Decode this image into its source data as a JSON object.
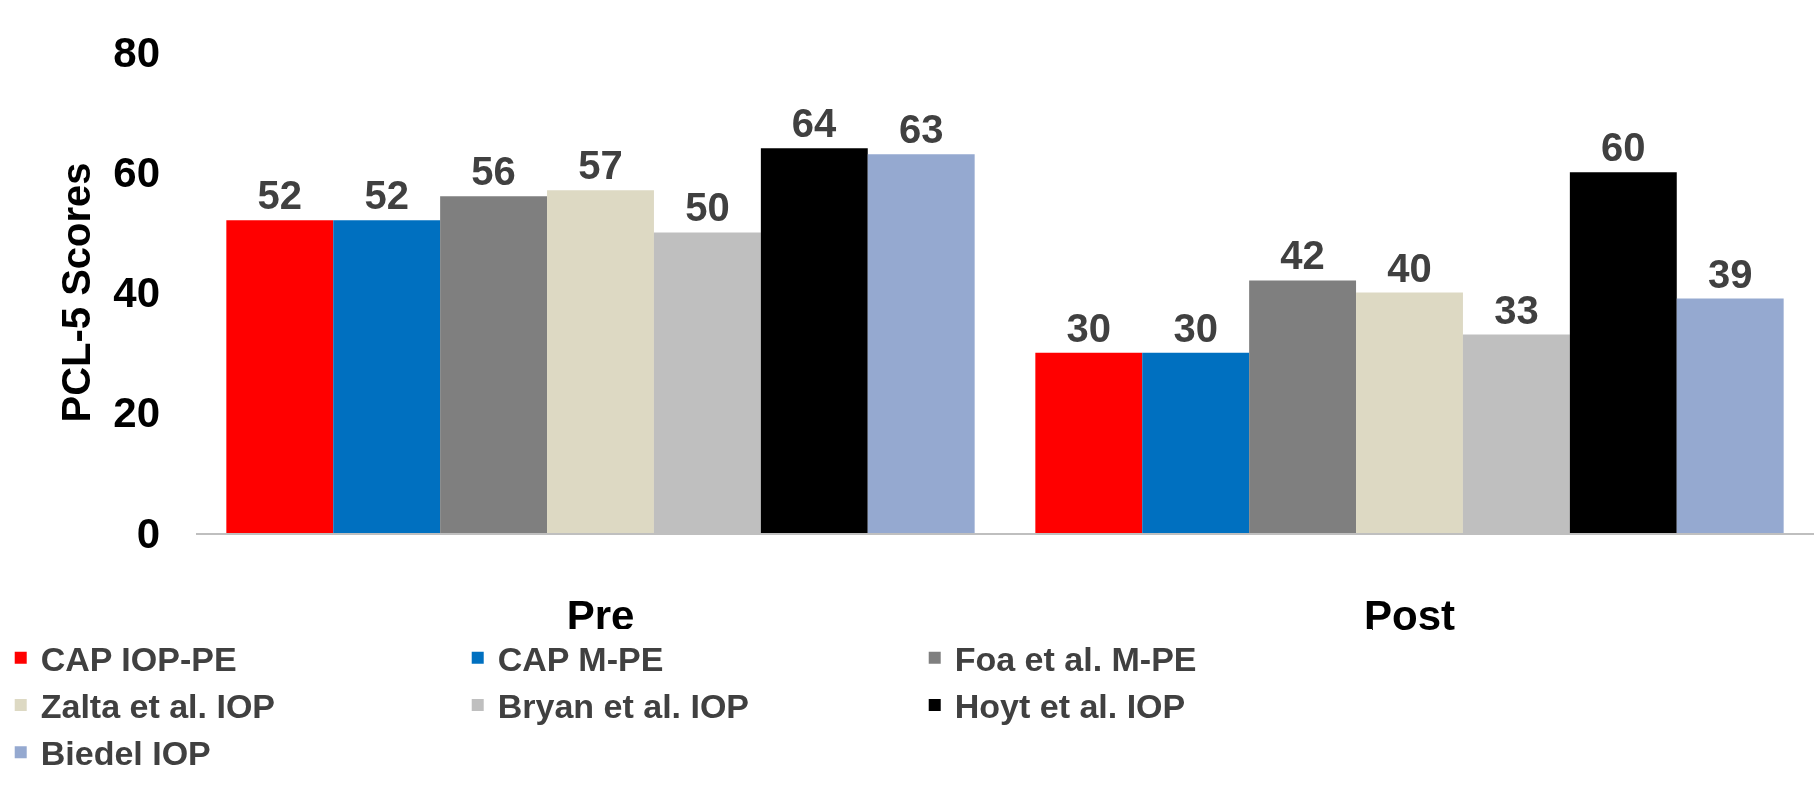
{
  "chart_data": {
    "type": "bar",
    "ylabel": "PCL-5 Scores",
    "categories": [
      "Pre",
      "Post"
    ],
    "series": [
      {
        "name": "CAP IOP-PE",
        "color": "#ff0000",
        "values": [
          52,
          30
        ]
      },
      {
        "name": "CAP M-PE",
        "color": "#0070c0",
        "values": [
          52,
          30
        ]
      },
      {
        "name": "Foa et al. M-PE",
        "color": "#7f7f7f",
        "values": [
          56,
          42
        ]
      },
      {
        "name": "Zalta et al. IOP",
        "color": "#ddd9c3",
        "values": [
          57,
          40
        ]
      },
      {
        "name": "Bryan et al. IOP",
        "color": "#bfbfbf",
        "values": [
          50,
          33
        ]
      },
      {
        "name": "Hoyt et al. IOP",
        "color": "#000000",
        "values": [
          64,
          60
        ]
      },
      {
        "name": "Biedel IOP",
        "color": "#95a9d0",
        "values": [
          63,
          39
        ]
      }
    ],
    "ylim": [
      0,
      80
    ],
    "yticks": [
      0,
      20,
      40,
      60,
      80
    ],
    "grid": false,
    "legend": "bottom",
    "data_labels": true
  }
}
